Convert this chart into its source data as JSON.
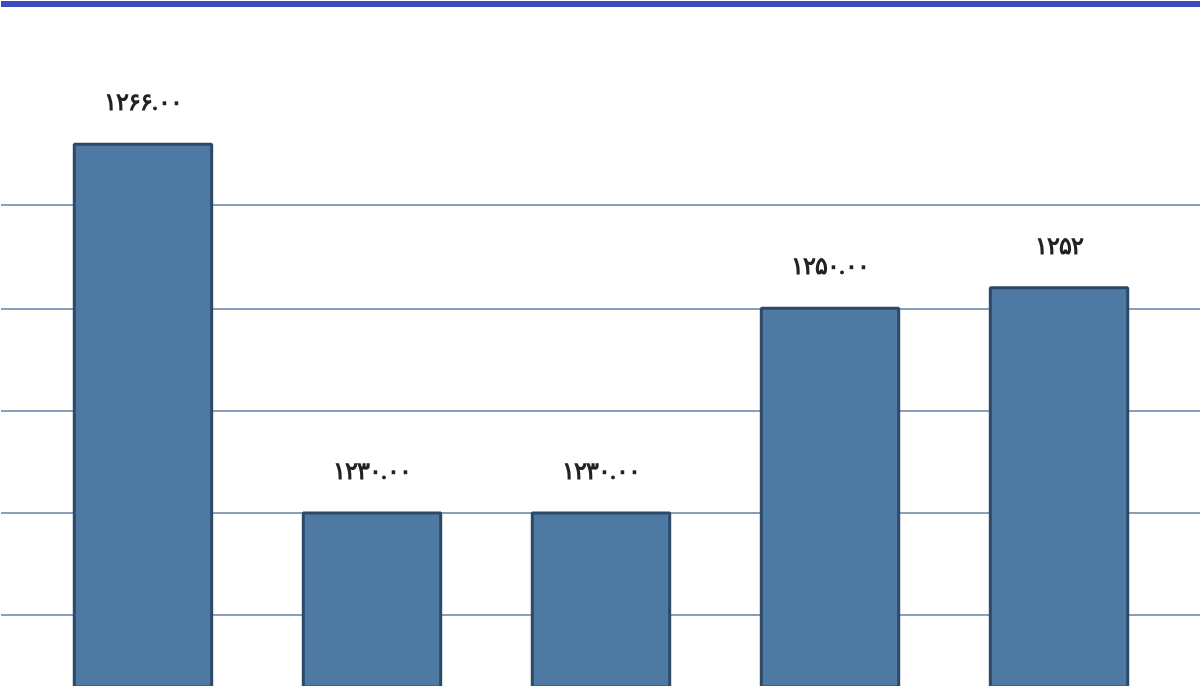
{
  "chart_data": {
    "type": "bar",
    "categories": [
      null,
      null,
      null,
      null,
      null
    ],
    "values": [
      1266,
      1230,
      1230,
      1250,
      1252
    ],
    "value_labels": [
      "۱۲۶۶.۰۰",
      "۱۲۳۰.۰۰",
      "۱۲۳۰.۰۰",
      "۱۲۵۰.۰۰",
      "۱۲۵۲"
    ],
    "color": "#4d79a3",
    "ylim": [
      1213,
      1280
    ],
    "yticks": [
      {
        "value": 1220,
        "label": null
      },
      {
        "value": 1230,
        "label": null
      },
      {
        "value": 1240,
        "label": null
      },
      {
        "value": 1250,
        "label": null
      },
      {
        "value": 1260,
        "label": null
      }
    ],
    "grid": "y",
    "tick_labels": false
  }
}
